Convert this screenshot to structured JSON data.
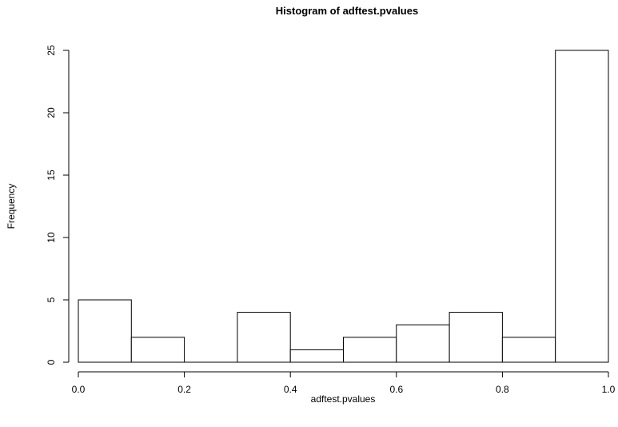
{
  "chart_data": {
    "type": "bar",
    "title": "Histogram of adftest.pvalues",
    "xlabel": "adftest.pvalues",
    "ylabel": "Frequency",
    "bins": [
      {
        "from": 0.0,
        "to": 0.1,
        "count": 5
      },
      {
        "from": 0.1,
        "to": 0.2,
        "count": 2
      },
      {
        "from": 0.2,
        "to": 0.3,
        "count": 0
      },
      {
        "from": 0.3,
        "to": 0.4,
        "count": 4
      },
      {
        "from": 0.4,
        "to": 0.5,
        "count": 1
      },
      {
        "from": 0.5,
        "to": 0.6,
        "count": 2
      },
      {
        "from": 0.6,
        "to": 0.7,
        "count": 3
      },
      {
        "from": 0.7,
        "to": 0.8,
        "count": 4
      },
      {
        "from": 0.8,
        "to": 0.9,
        "count": 2
      },
      {
        "from": 0.9,
        "to": 1.0,
        "count": 25
      }
    ],
    "xlim": [
      0,
      1
    ],
    "ylim": [
      0,
      25
    ],
    "x_ticks": [
      0.0,
      0.2,
      0.4,
      0.6,
      0.8,
      1.0
    ],
    "x_tick_labels": [
      "0.0",
      "0.2",
      "0.4",
      "0.6",
      "0.8",
      "1.0"
    ],
    "y_ticks": [
      0,
      5,
      10,
      15,
      20,
      25
    ],
    "y_tick_labels": [
      "0",
      "5",
      "10",
      "15",
      "20",
      "25"
    ],
    "grid": false,
    "legend": "none"
  }
}
